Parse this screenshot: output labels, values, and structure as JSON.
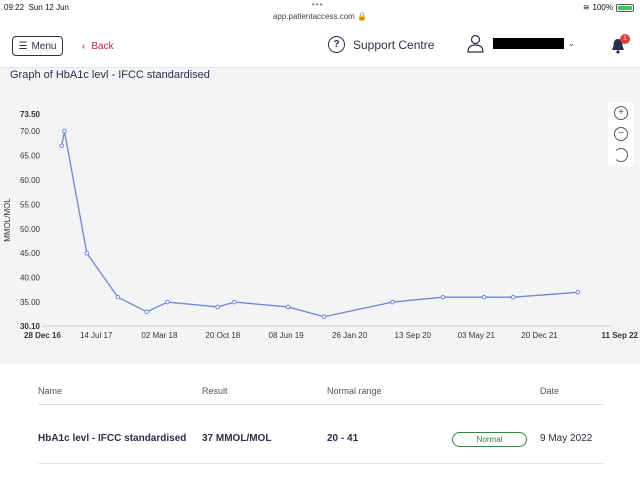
{
  "status_bar": {
    "time": "09:22",
    "date": "Sun 12 Jun",
    "url": "app.patientaccess.com",
    "battery": "100%"
  },
  "header": {
    "menu_label": "Menu",
    "back_label": "Back",
    "support_label": "Support Centre",
    "notification_count": "1"
  },
  "graph": {
    "title": "Graph of HbA1c levl - IFCC standardised"
  },
  "chart_data": {
    "type": "line",
    "ylabel": "MMOL/MOL",
    "xlabel": "",
    "ylim": [
      30.1,
      73.5
    ],
    "y_ticks": [
      "73.50",
      "70.00",
      "65.00",
      "60.00",
      "55.00",
      "50.00",
      "45.00",
      "40.00",
      "35.00",
      "30.10"
    ],
    "x_ticks": [
      "28 Dec 16",
      "14 Jul 17",
      "02 Mar 18",
      "20 Oct 18",
      "08 Jun 19",
      "26 Jan 20",
      "13 Sep 20",
      "03 May 21",
      "20 Dec 21",
      "11 Sep 22"
    ],
    "x": [
      "2017-03-10",
      "2017-03-20",
      "2017-06-10",
      "2017-10-01",
      "2018-01-15",
      "2018-04-01",
      "2018-10-01",
      "2018-12-01",
      "2019-06-15",
      "2019-10-25",
      "2020-07-01",
      "2021-01-01",
      "2021-06-01",
      "2021-09-15",
      "2022-05-09"
    ],
    "series": [
      {
        "values": [
          67,
          70,
          45,
          36,
          33,
          35,
          34,
          35,
          34,
          32,
          35,
          36,
          36,
          36,
          37
        ]
      }
    ]
  },
  "table": {
    "headers": {
      "name": "Name",
      "result": "Result",
      "range": "Normal range",
      "date": "Date"
    },
    "row": {
      "name": "HbA1c levl - IFCC standardised",
      "result": "37 MMOL/MOL",
      "range": "20 - 41",
      "status": "Normal",
      "date": "9 May 2022"
    }
  },
  "colors": {
    "accent": "#c0245a",
    "line": "#6f86d6",
    "normal": "#2d8a3a"
  }
}
